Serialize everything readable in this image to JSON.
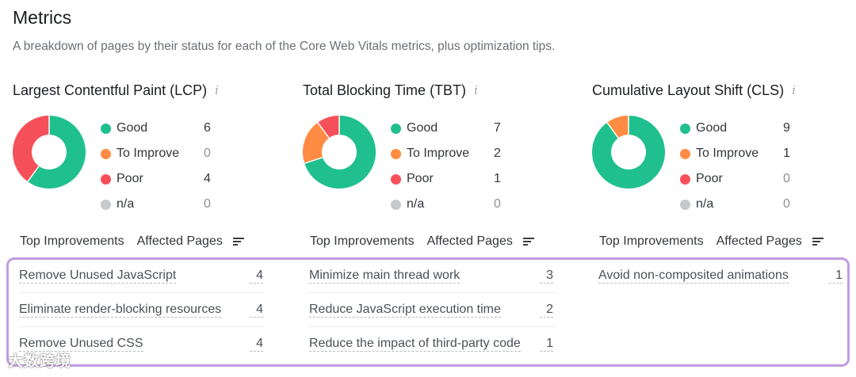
{
  "header": {
    "title": "Metrics",
    "subtitle": "A breakdown of pages by their status for each of the Core Web Vitals metrics, plus optimization tips."
  },
  "colors": {
    "good": "#1fc08e",
    "to_improve": "#ff8c42",
    "poor": "#f5505a",
    "na": "#c6c8cc",
    "highlight_frame": "#c39be3"
  },
  "metrics": {
    "lcp": {
      "title": "Largest Contentful Paint (LCP)",
      "info_icon": "info-icon",
      "legend": [
        {
          "label": "Good",
          "value": "6"
        },
        {
          "label": "To Improve",
          "value": "0"
        },
        {
          "label": "Poor",
          "value": "4"
        },
        {
          "label": "n/a",
          "value": "0"
        }
      ],
      "improvements_header": {
        "left": "Top Improvements",
        "right": "Affected Pages"
      },
      "improvements": [
        {
          "name": "Remove Unused JavaScript",
          "count": "4"
        },
        {
          "name": "Eliminate render-blocking resources",
          "count": "4"
        },
        {
          "name": "Remove Unused CSS",
          "count": "4"
        }
      ]
    },
    "tbt": {
      "title": "Total Blocking Time (TBT)",
      "info_icon": "info-icon",
      "legend": [
        {
          "label": "Good",
          "value": "7"
        },
        {
          "label": "To Improve",
          "value": "2"
        },
        {
          "label": "Poor",
          "value": "1"
        },
        {
          "label": "n/a",
          "value": "0"
        }
      ],
      "improvements_header": {
        "left": "Top Improvements",
        "right": "Affected Pages"
      },
      "improvements": [
        {
          "name": "Minimize main thread work",
          "count": "3"
        },
        {
          "name": "Reduce JavaScript execution time",
          "count": "2"
        },
        {
          "name": "Reduce the impact of third-party code",
          "count": "1"
        }
      ]
    },
    "cls": {
      "title": "Cumulative Layout Shift (CLS)",
      "info_icon": "info-icon",
      "legend": [
        {
          "label": "Good",
          "value": "9"
        },
        {
          "label": "To Improve",
          "value": "1"
        },
        {
          "label": "Poor",
          "value": "0"
        },
        {
          "label": "n/a",
          "value": "0"
        }
      ],
      "improvements_header": {
        "left": "Top Improvements",
        "right": "Affected Pages"
      },
      "improvements": [
        {
          "name": "Avoid non-composited animations",
          "count": "1"
        }
      ]
    }
  },
  "watermark": "大数跨境"
}
